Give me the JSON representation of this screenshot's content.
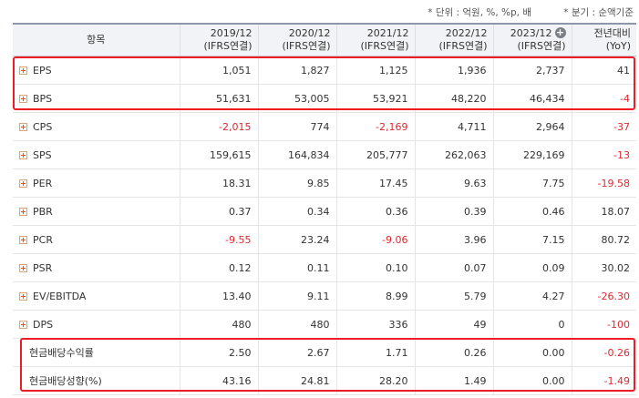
{
  "notes": {
    "unit": "* 단위 : 억원, %, %p, 배",
    "period": "* 분기 : 순액기준"
  },
  "header": {
    "item": "항목",
    "cols": [
      {
        "year": "2019/12",
        "basis": "(IFRS연결)"
      },
      {
        "year": "2020/12",
        "basis": "(IFRS연결)"
      },
      {
        "year": "2021/12",
        "basis": "(IFRS연결)"
      },
      {
        "year": "2022/12",
        "basis": "(IFRS연결)"
      },
      {
        "year": "2023/12",
        "basis": "(IFRS연결)"
      }
    ],
    "yoy": {
      "line1": "전년대비",
      "line2": "(YoY)"
    }
  },
  "rows": [
    {
      "label": "EPS",
      "values": [
        "1,051",
        "1,827",
        "1,125",
        "1,936",
        "2,737",
        "41"
      ],
      "neg": [
        false,
        false,
        false,
        false,
        false,
        false
      ],
      "expand": true
    },
    {
      "label": "BPS",
      "values": [
        "51,631",
        "53,005",
        "53,921",
        "48,220",
        "46,434",
        "-4"
      ],
      "neg": [
        false,
        false,
        false,
        false,
        false,
        true
      ],
      "expand": true
    },
    {
      "label": "CPS",
      "values": [
        "-2,015",
        "774",
        "-2,169",
        "4,711",
        "2,964",
        "-37"
      ],
      "neg": [
        true,
        false,
        true,
        false,
        false,
        true
      ],
      "expand": true
    },
    {
      "label": "SPS",
      "values": [
        "159,615",
        "164,834",
        "205,777",
        "262,063",
        "229,169",
        "-13"
      ],
      "neg": [
        false,
        false,
        false,
        false,
        false,
        true
      ],
      "expand": true
    },
    {
      "label": "PER",
      "values": [
        "18.31",
        "9.85",
        "17.45",
        "9.63",
        "7.75",
        "-19.58"
      ],
      "neg": [
        false,
        false,
        false,
        false,
        false,
        true
      ],
      "expand": true
    },
    {
      "label": "PBR",
      "values": [
        "0.37",
        "0.34",
        "0.36",
        "0.39",
        "0.46",
        "18.07"
      ],
      "neg": [
        false,
        false,
        false,
        false,
        false,
        false
      ],
      "expand": true
    },
    {
      "label": "PCR",
      "values": [
        "-9.55",
        "23.24",
        "-9.06",
        "3.96",
        "7.15",
        "80.72"
      ],
      "neg": [
        true,
        false,
        true,
        false,
        false,
        false
      ],
      "expand": true
    },
    {
      "label": "PSR",
      "values": [
        "0.12",
        "0.11",
        "0.10",
        "0.07",
        "0.09",
        "30.02"
      ],
      "neg": [
        false,
        false,
        false,
        false,
        false,
        false
      ],
      "expand": true
    },
    {
      "label": "EV/EBITDA",
      "values": [
        "13.40",
        "9.11",
        "8.99",
        "5.79",
        "4.27",
        "-26.30"
      ],
      "neg": [
        false,
        false,
        false,
        false,
        false,
        true
      ],
      "expand": true
    },
    {
      "label": "DPS",
      "values": [
        "480",
        "480",
        "336",
        "49",
        "0",
        "-100"
      ],
      "neg": [
        false,
        false,
        false,
        false,
        false,
        true
      ],
      "expand": true
    },
    {
      "label": "현금배당수익률",
      "values": [
        "2.50",
        "2.67",
        "1.71",
        "0.26",
        "0.00",
        "-0.26"
      ],
      "neg": [
        false,
        false,
        false,
        false,
        false,
        true
      ],
      "expand": false
    },
    {
      "label": "현금배당성향(%)",
      "values": [
        "43.16",
        "24.81",
        "28.20",
        "1.49",
        "0.00",
        "-1.49"
      ],
      "neg": [
        false,
        false,
        false,
        false,
        false,
        true
      ],
      "expand": false
    }
  ],
  "colors": {
    "negative": "#e0282e",
    "highlight": "#ee1c24",
    "header_bg": "#f2f3f6"
  },
  "icons": {
    "expand": "plus-square-icon",
    "add_column": "circle-plus-icon"
  }
}
